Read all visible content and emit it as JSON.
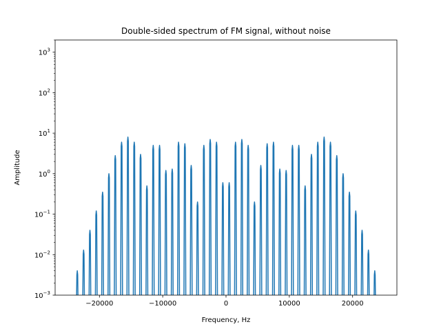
{
  "chart_data": {
    "type": "line",
    "title": "Double-sided spectrum of FM signal, without noise",
    "xlabel": "Frequency, Hz",
    "ylabel": "Amplitude",
    "xlim": [
      -27000,
      27000
    ],
    "ylim": [
      0.001,
      2000
    ],
    "yscale": "log",
    "grid": false,
    "line_color": "#1f77b4",
    "x_ticks": [
      {
        "value": -20000,
        "label": "−20000"
      },
      {
        "value": -10000,
        "label": "−10000"
      },
      {
        "value": 0,
        "label": "0"
      },
      {
        "value": 10000,
        "label": "10000"
      },
      {
        "value": 20000,
        "label": "20000"
      }
    ],
    "y_ticks": [
      {
        "value": 0.001,
        "base": "10",
        "exp": "−3"
      },
      {
        "value": 0.01,
        "base": "10",
        "exp": "−2"
      },
      {
        "value": 0.1,
        "base": "10",
        "exp": "−1"
      },
      {
        "value": 1,
        "base": "10",
        "exp": "0"
      },
      {
        "value": 10,
        "base": "10",
        "exp": "1"
      },
      {
        "value": 100,
        "base": "10",
        "exp": "2"
      },
      {
        "value": 1000,
        "base": "10",
        "exp": "3"
      }
    ],
    "x_range_drawn": [
      -24500,
      24500
    ],
    "series": [
      {
        "peaks": [
          {
            "x": -23500,
            "y": 0.004
          },
          {
            "x": -22500,
            "y": 0.013
          },
          {
            "x": -21500,
            "y": 0.04
          },
          {
            "x": -20500,
            "y": 0.12
          },
          {
            "x": -19500,
            "y": 0.35
          },
          {
            "x": -18500,
            "y": 1.0
          },
          {
            "x": -17500,
            "y": 2.8
          },
          {
            "x": -16500,
            "y": 6.0
          },
          {
            "x": -15500,
            "y": 8.0
          },
          {
            "x": -14500,
            "y": 6.0
          },
          {
            "x": -13500,
            "y": 3.0
          },
          {
            "x": -12500,
            "y": 0.5
          },
          {
            "x": -11500,
            "y": 5.0
          },
          {
            "x": -10500,
            "y": 5.0
          },
          {
            "x": -9500,
            "y": 1.2
          },
          {
            "x": -8500,
            "y": 1.3
          },
          {
            "x": -7500,
            "y": 6.0
          },
          {
            "x": -6500,
            "y": 5.5
          },
          {
            "x": -5500,
            "y": 1.6
          },
          {
            "x": -4500,
            "y": 0.2
          },
          {
            "x": -3500,
            "y": 5.0
          },
          {
            "x": -2500,
            "y": 7.0
          },
          {
            "x": -1500,
            "y": 6.0
          },
          {
            "x": -500,
            "y": 0.6
          },
          {
            "x": 500,
            "y": 0.6
          },
          {
            "x": 1500,
            "y": 6.0
          },
          {
            "x": 2500,
            "y": 7.0
          },
          {
            "x": 3500,
            "y": 5.0
          },
          {
            "x": 4500,
            "y": 0.2
          },
          {
            "x": 5500,
            "y": 1.6
          },
          {
            "x": 6500,
            "y": 5.5
          },
          {
            "x": 7500,
            "y": 6.0
          },
          {
            "x": 8500,
            "y": 1.3
          },
          {
            "x": 9500,
            "y": 1.2
          },
          {
            "x": 10500,
            "y": 5.0
          },
          {
            "x": 11500,
            "y": 5.0
          },
          {
            "x": 12500,
            "y": 0.5
          },
          {
            "x": 13500,
            "y": 3.0
          },
          {
            "x": 14500,
            "y": 6.0
          },
          {
            "x": 15500,
            "y": 8.0
          },
          {
            "x": 16500,
            "y": 6.0
          },
          {
            "x": 17500,
            "y": 2.8
          },
          {
            "x": 18500,
            "y": 1.0
          },
          {
            "x": 19500,
            "y": 0.35
          },
          {
            "x": 20500,
            "y": 0.12
          },
          {
            "x": 21500,
            "y": 0.04
          },
          {
            "x": 22500,
            "y": 0.013
          },
          {
            "x": 23500,
            "y": 0.004
          }
        ]
      }
    ]
  }
}
